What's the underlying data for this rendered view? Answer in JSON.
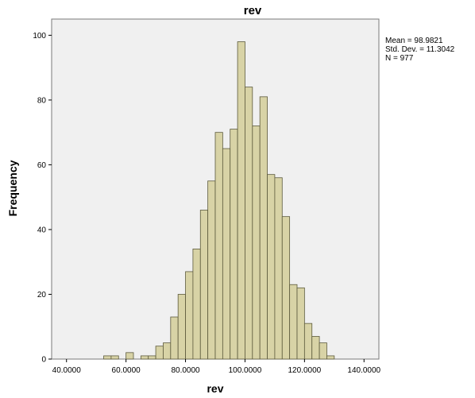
{
  "chart_data": {
    "type": "bar",
    "title": "rev",
    "xlabel": "rev",
    "ylabel": "Frequency",
    "xlim": [
      35.0,
      145.0
    ],
    "ylim": [
      0,
      105
    ],
    "x_ticks": [
      40.0,
      60.0,
      80.0,
      100.0,
      120.0,
      140.0
    ],
    "x_tick_labels": [
      "40.0000",
      "60.0000",
      "80.0000",
      "100.0000",
      "120.0000",
      "140.0000"
    ],
    "y_ticks": [
      0,
      20,
      40,
      60,
      80,
      100
    ],
    "y_tick_labels": [
      "0",
      "20",
      "40",
      "60",
      "80",
      "100"
    ],
    "bin_width": 2.5,
    "bins_start": [
      52.5,
      55.0,
      57.5,
      60.0,
      62.5,
      65.0,
      67.5,
      70.0,
      72.5,
      75.0,
      77.5,
      80.0,
      82.5,
      85.0,
      87.5,
      90.0,
      92.5,
      95.0,
      97.5,
      100.0,
      102.5,
      105.0,
      107.5,
      110.0,
      112.5,
      115.0,
      117.5,
      120.0,
      122.5,
      125.0,
      127.5
    ],
    "values": [
      1,
      1,
      0,
      2,
      0,
      1,
      1,
      4,
      5,
      13,
      20,
      27,
      34,
      46,
      55,
      70,
      65,
      71,
      98,
      84,
      72,
      81,
      57,
      56,
      44,
      23,
      22,
      11,
      7,
      5,
      1
    ],
    "grid": false,
    "legend": "none",
    "stats": [
      "Mean = 98.9821",
      "Std. Dev. = 11.3042",
      "N = 977"
    ],
    "colors": {
      "bar_fill": "#d8d3a6",
      "bar_stroke": "#5c5a3c",
      "plot_bg": "#f0f0f0",
      "axis": "#000000"
    }
  }
}
